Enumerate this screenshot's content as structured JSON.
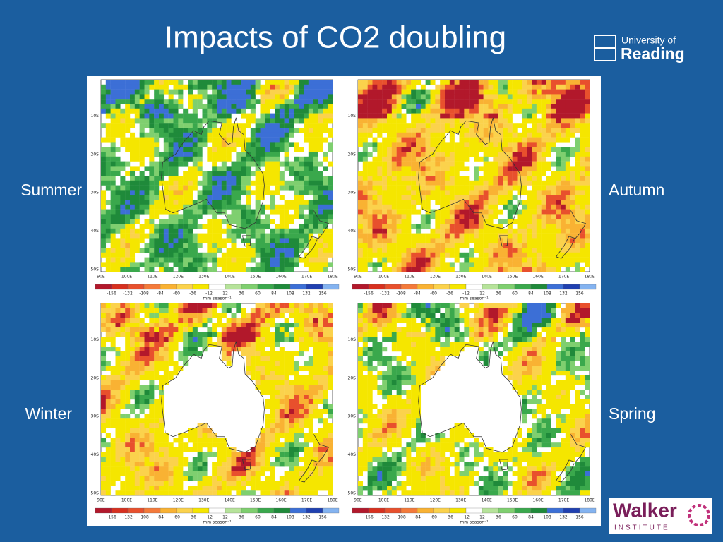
{
  "title": "Impacts of CO2 doubling",
  "logo": {
    "line1": "University of",
    "line2": "Reading"
  },
  "walker": {
    "name": "Walker",
    "sub": "INSTITUTE"
  },
  "panels": [
    {
      "label": "Summer"
    },
    {
      "label": "Autumn"
    },
    {
      "label": "Winter"
    },
    {
      "label": "Spring"
    }
  ],
  "map_axes": {
    "lat_labels": [
      "10S",
      "20S",
      "30S",
      "40S",
      "50S"
    ],
    "lon_labels": [
      "90E",
      "100E",
      "110E",
      "120E",
      "130E",
      "140E",
      "150E",
      "160E",
      "170E",
      "180E"
    ]
  },
  "colorbar": {
    "labels": [
      -156,
      -132,
      -108,
      -84,
      -60,
      -36,
      -12,
      12,
      36,
      60,
      84,
      108,
      132,
      156
    ],
    "unit": "mm season⁻¹",
    "colors": [
      "#b2182b",
      "#d7301f",
      "#e8502d",
      "#f47a3a",
      "#f9b233",
      "#fbd24c",
      "#f5e600",
      "#ffffff",
      "#b6e39a",
      "#7fcf6f",
      "#3aa84c",
      "#1f8a3a",
      "#3c6fd6",
      "#2040b0",
      "#84b3f0"
    ]
  }
}
